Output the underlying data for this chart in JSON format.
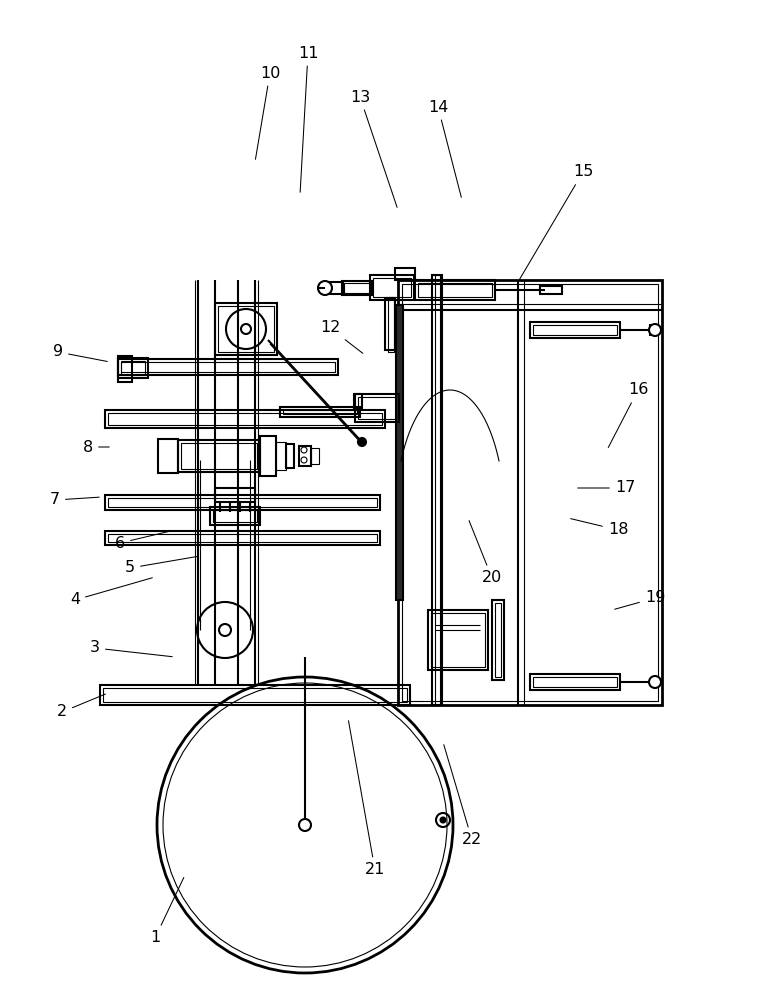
{
  "bg_color": "#ffffff",
  "lc": "#000000",
  "lw": 1.5,
  "tlw": 0.8,
  "figsize": [
    7.67,
    10.0
  ],
  "dpi": 100,
  "label_data": [
    [
      "1",
      155,
      938,
      185,
      875
    ],
    [
      "2",
      62,
      712,
      108,
      693
    ],
    [
      "3",
      95,
      648,
      175,
      657
    ],
    [
      "4",
      75,
      600,
      155,
      577
    ],
    [
      "5",
      130,
      568,
      200,
      556
    ],
    [
      "6",
      120,
      543,
      175,
      530
    ],
    [
      "7",
      55,
      500,
      102,
      497
    ],
    [
      "8",
      88,
      447,
      112,
      447
    ],
    [
      "9",
      58,
      352,
      110,
      362
    ],
    [
      "10",
      270,
      73,
      255,
      162
    ],
    [
      "11",
      308,
      53,
      300,
      195
    ],
    [
      "12",
      330,
      328,
      365,
      355
    ],
    [
      "13",
      360,
      97,
      398,
      210
    ],
    [
      "14",
      438,
      107,
      462,
      200
    ],
    [
      "15",
      583,
      172,
      518,
      282
    ],
    [
      "16",
      638,
      390,
      607,
      450
    ],
    [
      "17",
      625,
      488,
      575,
      488
    ],
    [
      "18",
      618,
      530,
      568,
      518
    ],
    [
      "19",
      655,
      598,
      612,
      610
    ],
    [
      "20",
      492,
      578,
      468,
      518
    ],
    [
      "21",
      375,
      870,
      348,
      718
    ],
    [
      "22",
      472,
      840,
      443,
      742
    ]
  ]
}
